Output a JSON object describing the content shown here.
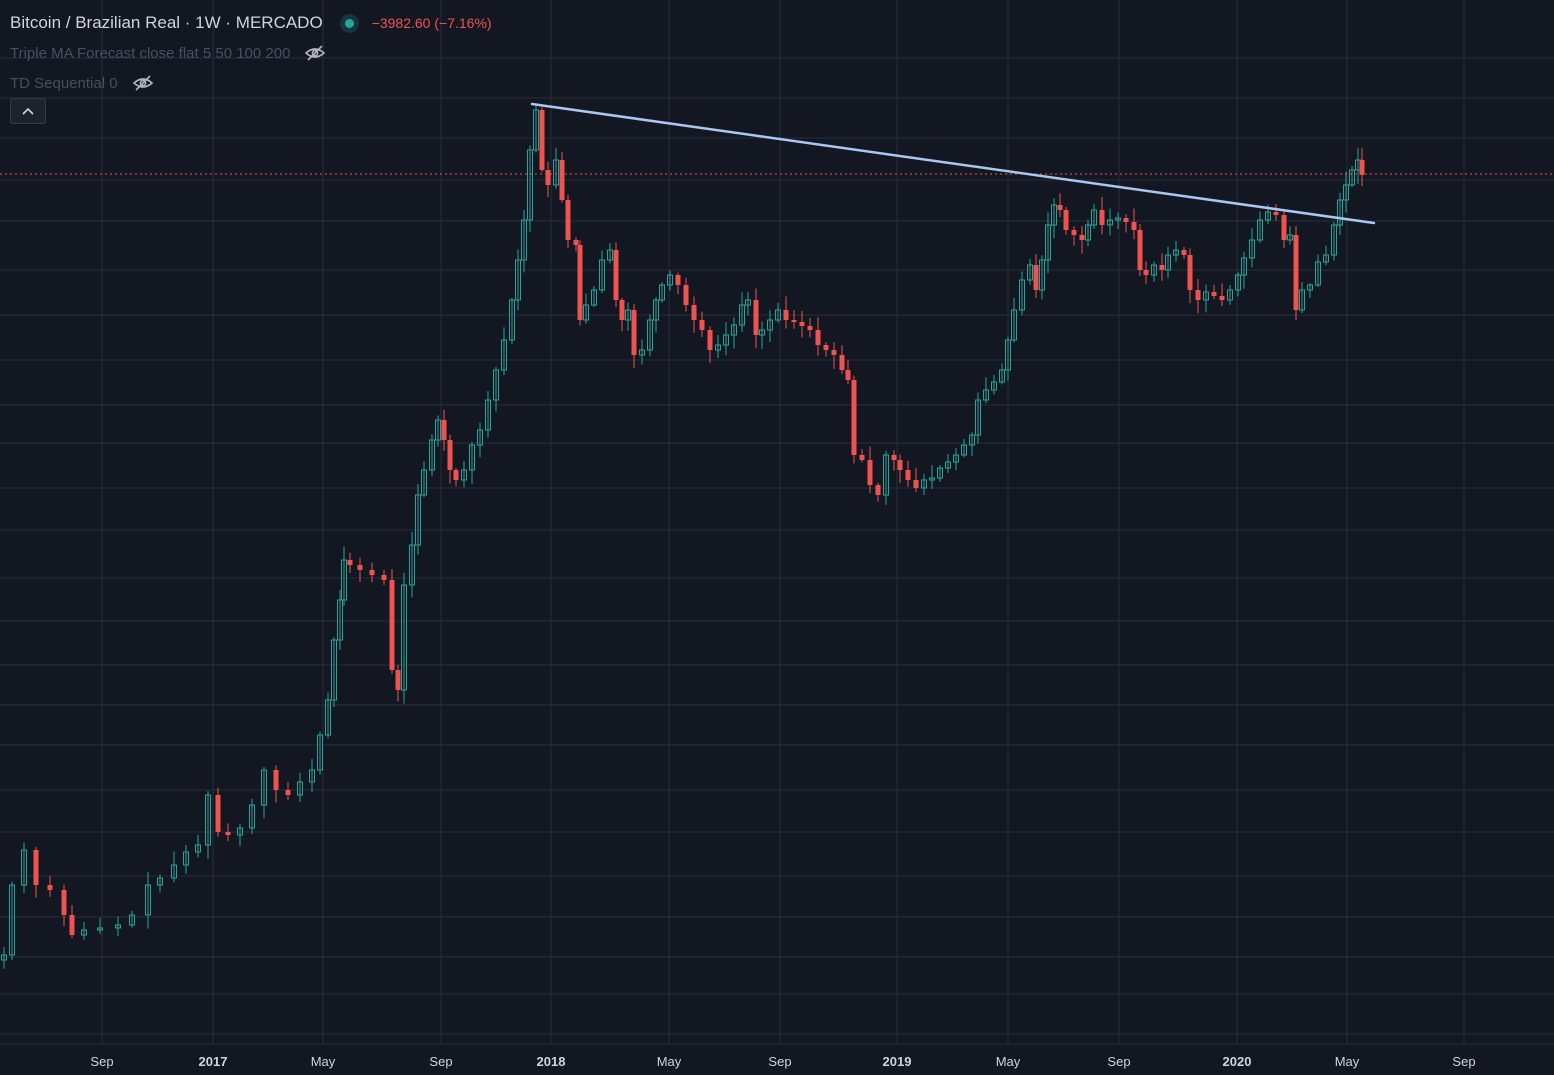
{
  "header": {
    "symbol": "Bitcoin / Brazilian Real · 1W · MERCADO",
    "change": "−3982.60 (−7.16%)",
    "indicators": [
      {
        "label": "Triple MA Forecast close flat 5 50 100 200"
      },
      {
        "label": "TD Sequential 0"
      }
    ]
  },
  "colors": {
    "background": "#131722",
    "grid": "#2a2e39",
    "up": "#26a69a",
    "down": "#ef5350",
    "trendline": "#a9c8f0",
    "price_line": "#ef5350"
  },
  "chart_data": {
    "type": "candlestick",
    "xaxis_labels": [
      "Sep",
      "2017",
      "May",
      "Sep",
      "2018",
      "May",
      "Sep",
      "2019",
      "May",
      "Sep",
      "2020",
      "May",
      "Sep"
    ],
    "x_range": [
      "2016-05",
      "2020-11"
    ],
    "candles_shown": "weekly OHLC, 2016-05 to 2020-05",
    "trend_line": {
      "from": "2017-12",
      "to": "2020-05",
      "direction": "descending"
    },
    "last_change": -3982.6,
    "last_change_pct": -7.16
  }
}
